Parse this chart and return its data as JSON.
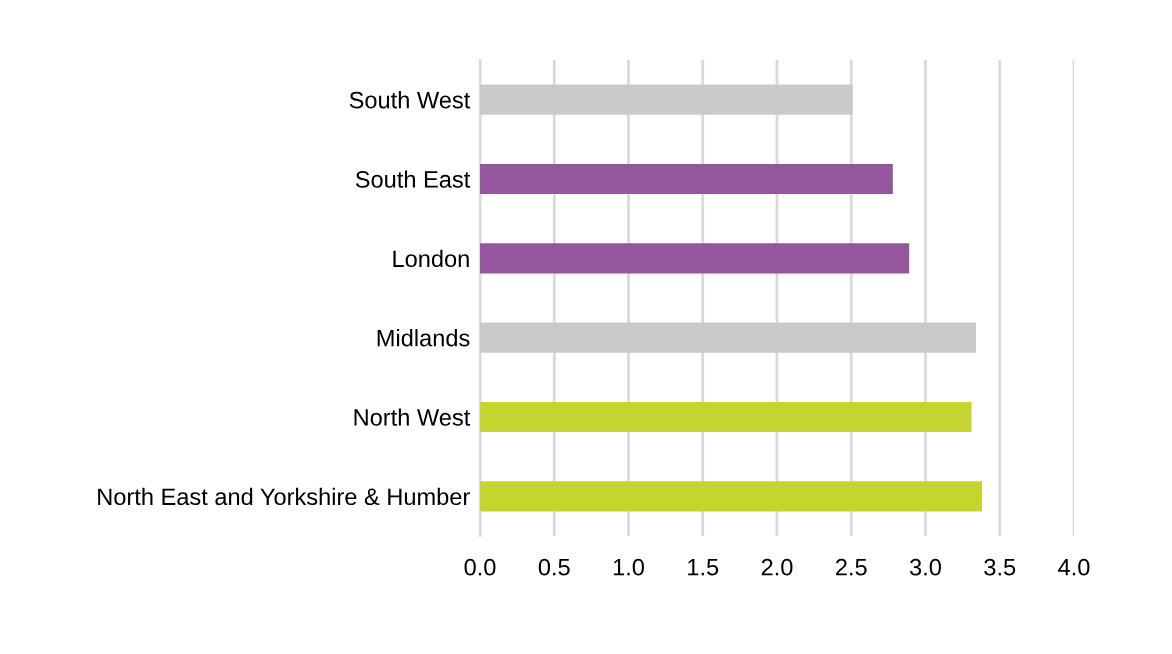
{
  "chart_data": {
    "type": "bar",
    "orientation": "horizontal",
    "categories": [
      "South West",
      "South East",
      "London",
      "Midlands",
      "North West",
      "North East and Yorkshire & Humber"
    ],
    "values": [
      2.51,
      2.78,
      2.89,
      3.34,
      3.31,
      3.38
    ],
    "colors": [
      "#c9cacb",
      "#94569c",
      "#94569c",
      "#c9cacb",
      "#c4d52f",
      "#c4d52f"
    ],
    "xlim": [
      0,
      4.0
    ],
    "xticks": [
      {
        "value": 0,
        "label": "0.0"
      },
      {
        "value": 0.5,
        "label": "0.5"
      },
      {
        "value": 1,
        "label": "1.0"
      },
      {
        "value": 1.5,
        "label": "1.5"
      },
      {
        "value": 2,
        "label": "2.0"
      },
      {
        "value": 2.5,
        "label": "2.5"
      },
      {
        "value": 3,
        "label": "3.0"
      },
      {
        "value": 3.5,
        "label": "3.5"
      },
      {
        "value": 4,
        "label": "4.0"
      }
    ],
    "grid": "x",
    "legend": false
  }
}
